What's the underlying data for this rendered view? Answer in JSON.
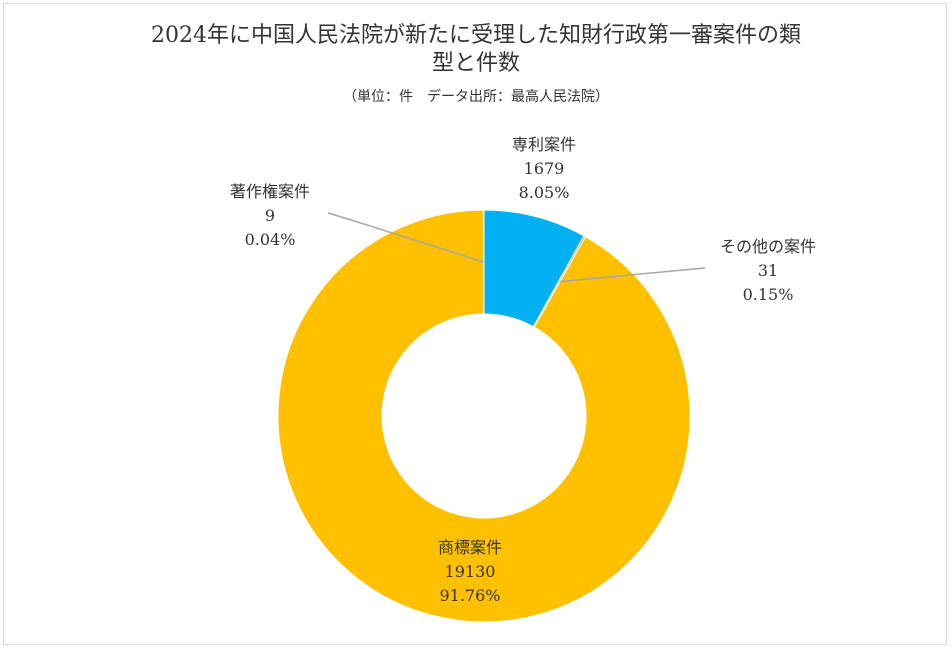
{
  "title_line1": "2024年に中国人民法院が新たに受理した知財行政第一審案件の類",
  "title_line2": "型と件数",
  "subtitle": "（単位：件　データ出所：最高人民法院）",
  "chart_data": {
    "type": "pie",
    "style": "doughnut",
    "title": "2024年に中国人民法院が新たに受理した知財行政第一審案件の類型と件数",
    "subtitle": "（単位：件　データ出所：最高人民法院）",
    "slices": [
      {
        "key": "patent",
        "name": "専利案件",
        "value": 1679,
        "percent": "8.05%",
        "color": "#00b0f0"
      },
      {
        "key": "other",
        "name": "その他の案件",
        "value": 31,
        "percent": "0.15%",
        "color": "#a5a5a5"
      },
      {
        "key": "trademark",
        "name": "商標案件",
        "value": 19130,
        "percent": "91.76%",
        "color": "#ffc000"
      },
      {
        "key": "copyright",
        "name": "著作権案件",
        "value": 9,
        "percent": "0.04%",
        "color": "#7f7f7f"
      }
    ],
    "legend": "none"
  }
}
